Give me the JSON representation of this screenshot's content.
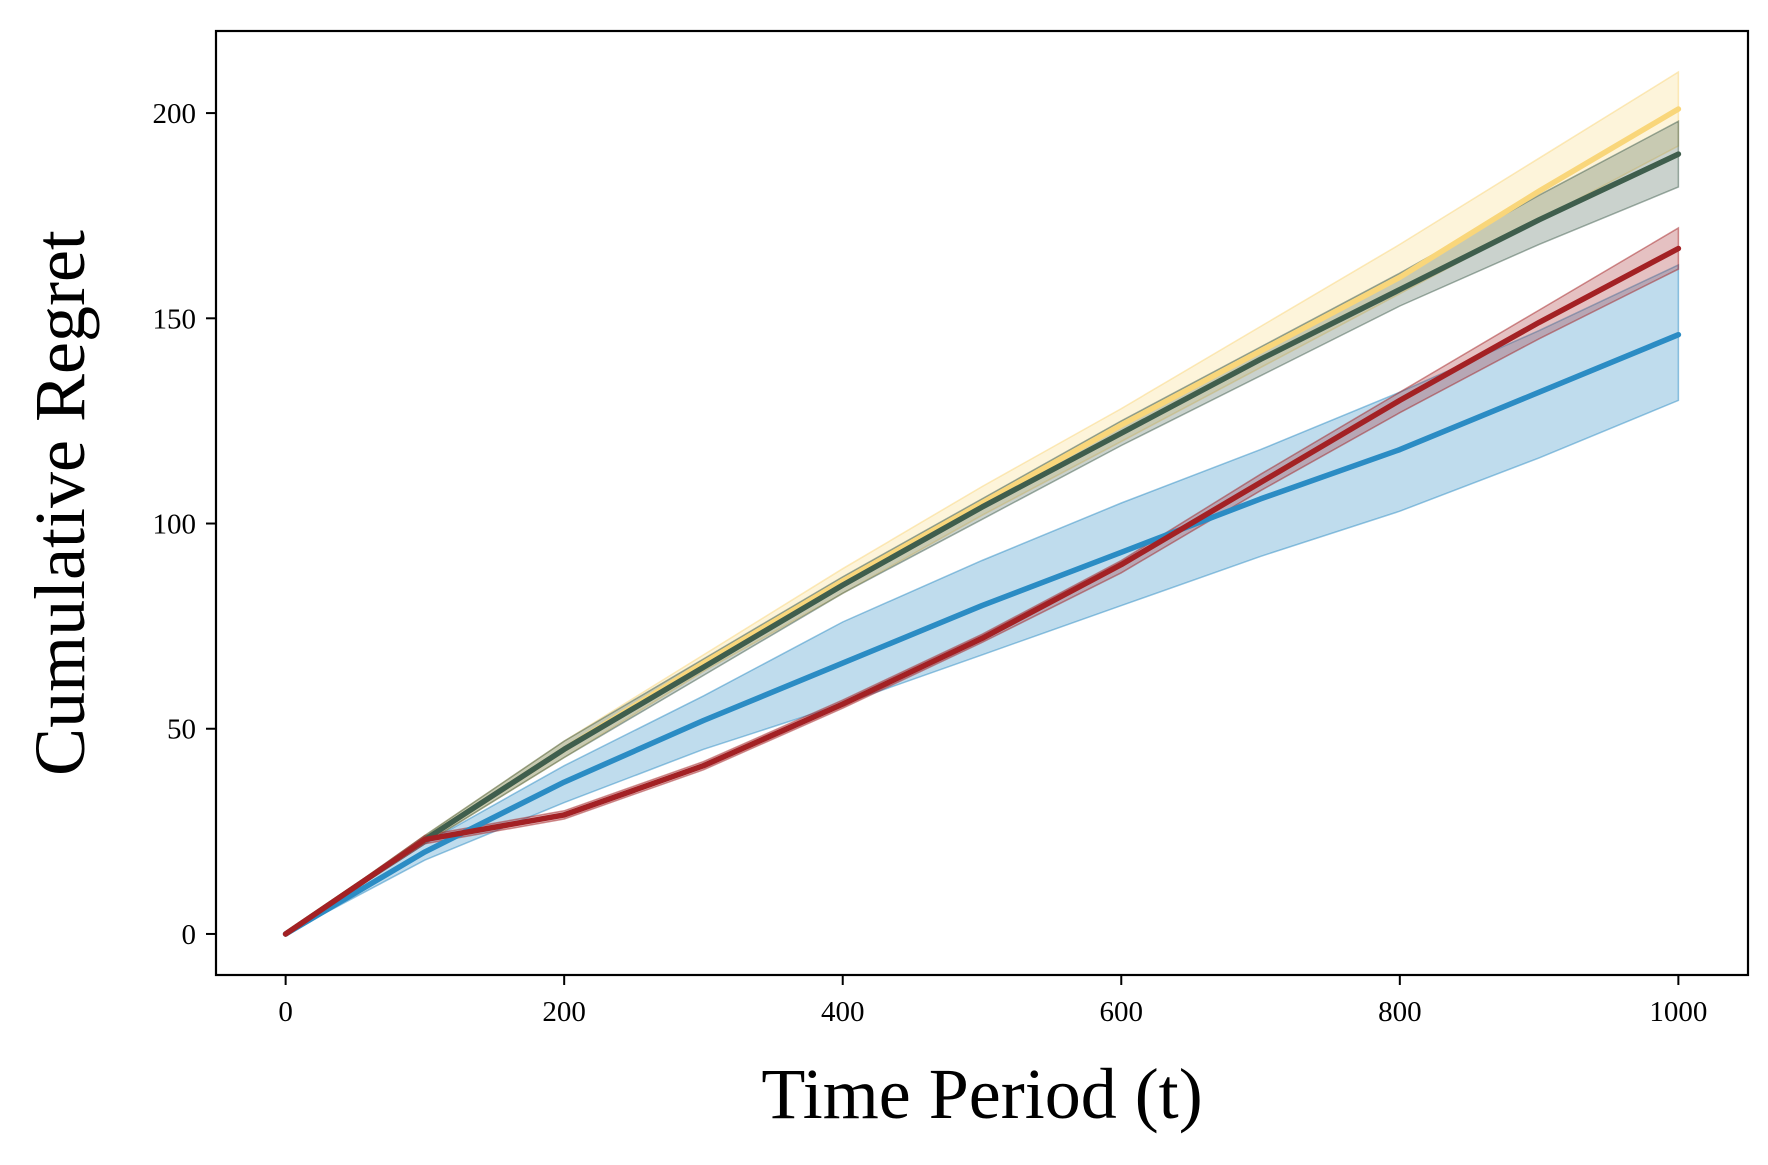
{
  "chart_data": {
    "type": "line",
    "title": "",
    "xlabel": "Time Period (t)",
    "ylabel": "Cumulative Regret",
    "xlim": [
      -50,
      1050
    ],
    "ylim": [
      -10,
      220
    ],
    "xticks": [
      0,
      200,
      400,
      600,
      800,
      1000
    ],
    "yticks": [
      0,
      50,
      100,
      150,
      200
    ],
    "grid": false,
    "legend": "none",
    "x": [
      0,
      100,
      200,
      300,
      400,
      500,
      600,
      700,
      800,
      900,
      1000
    ],
    "series": [
      {
        "color": "#f9d67a",
        "values": [
          0,
          23,
          45,
          66,
          86,
          105,
          124,
          142,
          160,
          181,
          201
        ],
        "lower": [
          0,
          22,
          43,
          64,
          83,
          102,
          120,
          138,
          156,
          174,
          192
        ],
        "upper": [
          0,
          24,
          47,
          68,
          89,
          109,
          128,
          148,
          168,
          189,
          210
        ]
      },
      {
        "color": "#3f5e4d",
        "values": [
          0,
          23,
          45,
          65,
          85,
          104,
          122,
          140,
          157,
          174,
          190
        ],
        "lower": [
          0,
          22,
          43,
          63,
          83,
          101,
          119,
          136,
          153,
          168,
          182
        ],
        "upper": [
          0,
          24,
          47,
          67,
          87,
          106,
          125,
          143,
          161,
          180,
          198
        ]
      },
      {
        "color": "#2b8cc4",
        "values": [
          0,
          20,
          37,
          52,
          66,
          80,
          93,
          106,
          118,
          132,
          146
        ],
        "lower": [
          0,
          18,
          32,
          45,
          56,
          68,
          80,
          92,
          103,
          116,
          130
        ],
        "upper": [
          0,
          22,
          41,
          58,
          76,
          91,
          105,
          118,
          132,
          147,
          163
        ]
      },
      {
        "color": "#a32124",
        "values": [
          0,
          23,
          29,
          41,
          56,
          72,
          90,
          110,
          130,
          149,
          167
        ],
        "lower": [
          0,
          22,
          28,
          40,
          55,
          71,
          88,
          108,
          127,
          145,
          162
        ],
        "upper": [
          0,
          24,
          30,
          42,
          57,
          73,
          91,
          112,
          132,
          152,
          172
        ]
      }
    ]
  }
}
